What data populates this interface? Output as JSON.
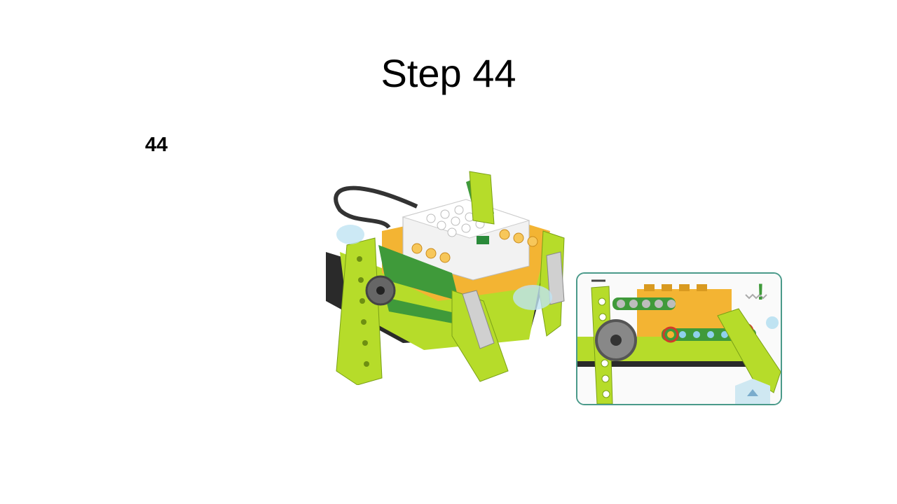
{
  "slide": {
    "title": "Step 44",
    "step_number": "44"
  },
  "illustrations": {
    "main_model": "lego-wedo-robot-assembly",
    "detail_inset": "beam-attachment-detail",
    "detail_mark": "!"
  },
  "colors": {
    "lime": "#b6dc2a",
    "green": "#3f9a3a",
    "orange": "#f3b433",
    "white": "#f2f2f2",
    "gray": "#9a9a9a",
    "accent_frame": "#4a9a8a"
  }
}
